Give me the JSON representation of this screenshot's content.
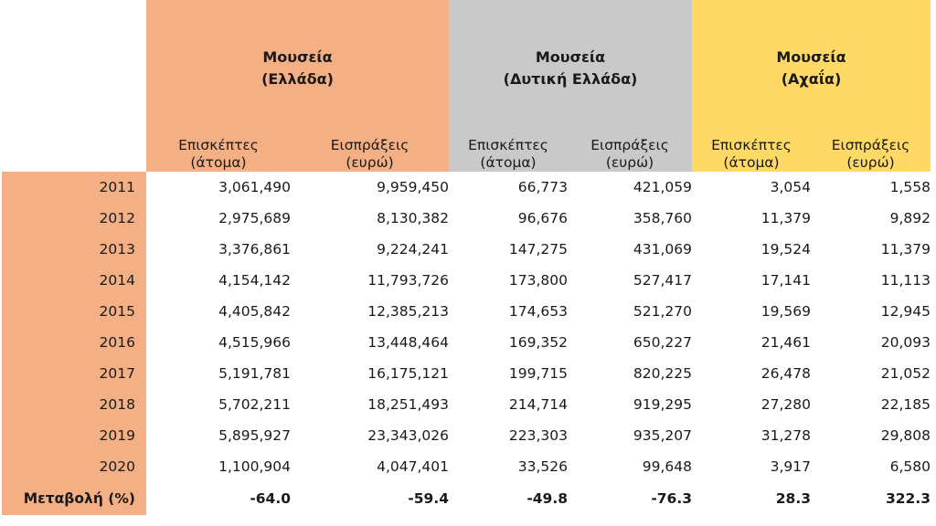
{
  "chart_data": {
    "type": "table",
    "groups": [
      {
        "name_line1": "Μουσεία",
        "name_line2": "(Ελλάδα)",
        "color": "#f4b084"
      },
      {
        "name_line1": "Μουσεία",
        "name_line2": "(Δυτική Ελλάδα)",
        "color": "#c9c9c9"
      },
      {
        "name_line1": "Μουσεία",
        "name_line2": "(Αχαΐα)",
        "color": "#ffd966"
      }
    ],
    "subheaders": [
      {
        "line1": "Επισκέπτες",
        "line2": "(άτομα)"
      },
      {
        "line1": "Εισπράξεις",
        "line2": "(ευρώ)"
      }
    ],
    "rows": [
      {
        "year": "2011",
        "values": [
          "3,061,490",
          "9,959,450",
          "66,773",
          "421,059",
          "3,054",
          "1,558"
        ]
      },
      {
        "year": "2012",
        "values": [
          "2,975,689",
          "8,130,382",
          "96,676",
          "358,760",
          "11,379",
          "9,892"
        ]
      },
      {
        "year": "2013",
        "values": [
          "3,376,861",
          "9,224,241",
          "147,275",
          "431,069",
          "19,524",
          "11,379"
        ]
      },
      {
        "year": "2014",
        "values": [
          "4,154,142",
          "11,793,726",
          "173,800",
          "527,417",
          "17,141",
          "11,113"
        ]
      },
      {
        "year": "2015",
        "values": [
          "4,405,842",
          "12,385,213",
          "174,653",
          "521,270",
          "19,569",
          "12,945"
        ]
      },
      {
        "year": "2016",
        "values": [
          "4,515,966",
          "13,448,464",
          "169,352",
          "650,227",
          "21,461",
          "20,093"
        ]
      },
      {
        "year": "2017",
        "values": [
          "5,191,781",
          "16,175,121",
          "199,715",
          "820,225",
          "26,478",
          "21,052"
        ]
      },
      {
        "year": "2018",
        "values": [
          "5,702,211",
          "18,251,493",
          "214,714",
          "919,295",
          "27,280",
          "22,185"
        ]
      },
      {
        "year": "2019",
        "values": [
          "5,895,927",
          "23,343,026",
          "223,303",
          "935,207",
          "31,278",
          "29,808"
        ]
      },
      {
        "year": "2020",
        "values": [
          "1,100,904",
          "4,047,401",
          "33,526",
          "99,648",
          "3,917",
          "6,580"
        ]
      }
    ],
    "change_row": {
      "label": "Μεταβολή (%)",
      "values": [
        "-64.0",
        "-59.4",
        "-49.8",
        "-76.3",
        "28.3",
        "322.3"
      ]
    }
  }
}
